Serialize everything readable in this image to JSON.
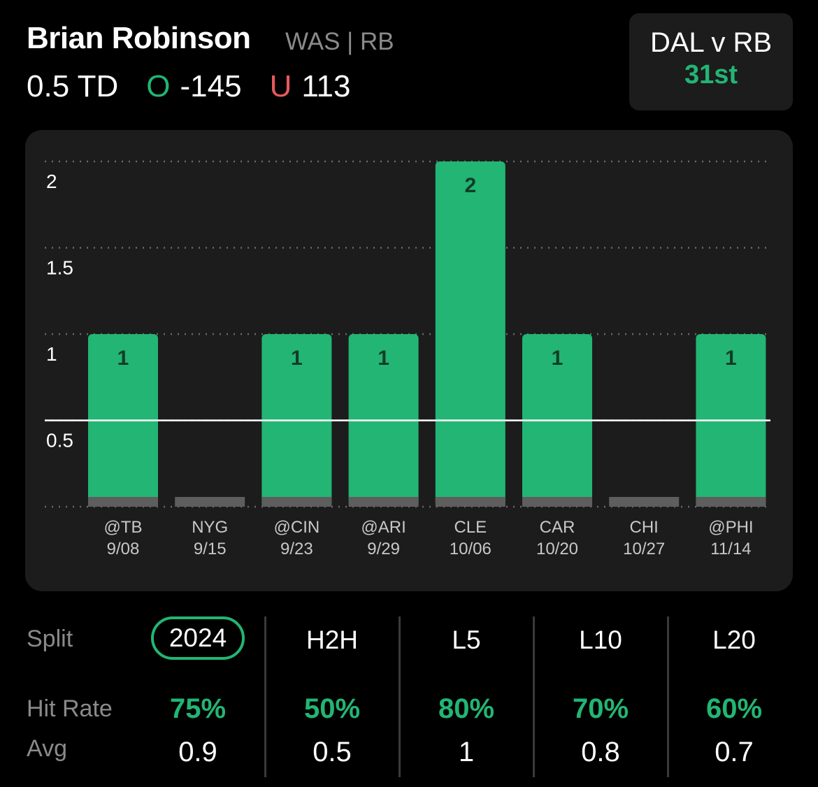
{
  "header": {
    "player_name": "Brian Robinson",
    "team_pos": "WAS | RB",
    "line": "0.5 TD",
    "over_letter": "O",
    "over_odds": "-145",
    "under_letter": "U",
    "under_odds": "113"
  },
  "matchup": {
    "title": "DAL v RB",
    "rank": "31st"
  },
  "colors": {
    "accent": "#22b573",
    "bar": "#22b573",
    "under": "#e85a5a",
    "muted": "#8a8a8a",
    "card": "#1c1c1c",
    "zero_stub": "#5e5e5e"
  },
  "chart_data": {
    "type": "bar",
    "categories": [
      "@TB",
      "NYG",
      "@CIN",
      "@ARI",
      "CLE",
      "CAR",
      "CHI",
      "@PHI"
    ],
    "dates": [
      "9/08",
      "9/15",
      "9/23",
      "9/29",
      "10/06",
      "10/20",
      "10/27",
      "11/14"
    ],
    "values": [
      1,
      0,
      1,
      1,
      2,
      1,
      0,
      1
    ],
    "data_labels": [
      "1",
      "",
      "1",
      "1",
      "2",
      "1",
      "",
      "1"
    ],
    "ylim": [
      0,
      2
    ],
    "yticks": [
      0.5,
      1,
      1.5,
      2
    ],
    "ytick_labels": [
      "0.5",
      "1",
      "1.5",
      "2"
    ],
    "threshold": 0.5,
    "grid": true
  },
  "splits": {
    "label": "Split",
    "tabs": [
      "2024",
      "H2H",
      "L5",
      "L10",
      "L20"
    ],
    "active": "2024"
  },
  "stats": {
    "hit_rate_label": "Hit Rate",
    "avg_label": "Avg",
    "hit_rates": [
      "75%",
      "50%",
      "80%",
      "70%",
      "60%"
    ],
    "avgs": [
      "0.9",
      "0.5",
      "1",
      "0.8",
      "0.7"
    ]
  }
}
